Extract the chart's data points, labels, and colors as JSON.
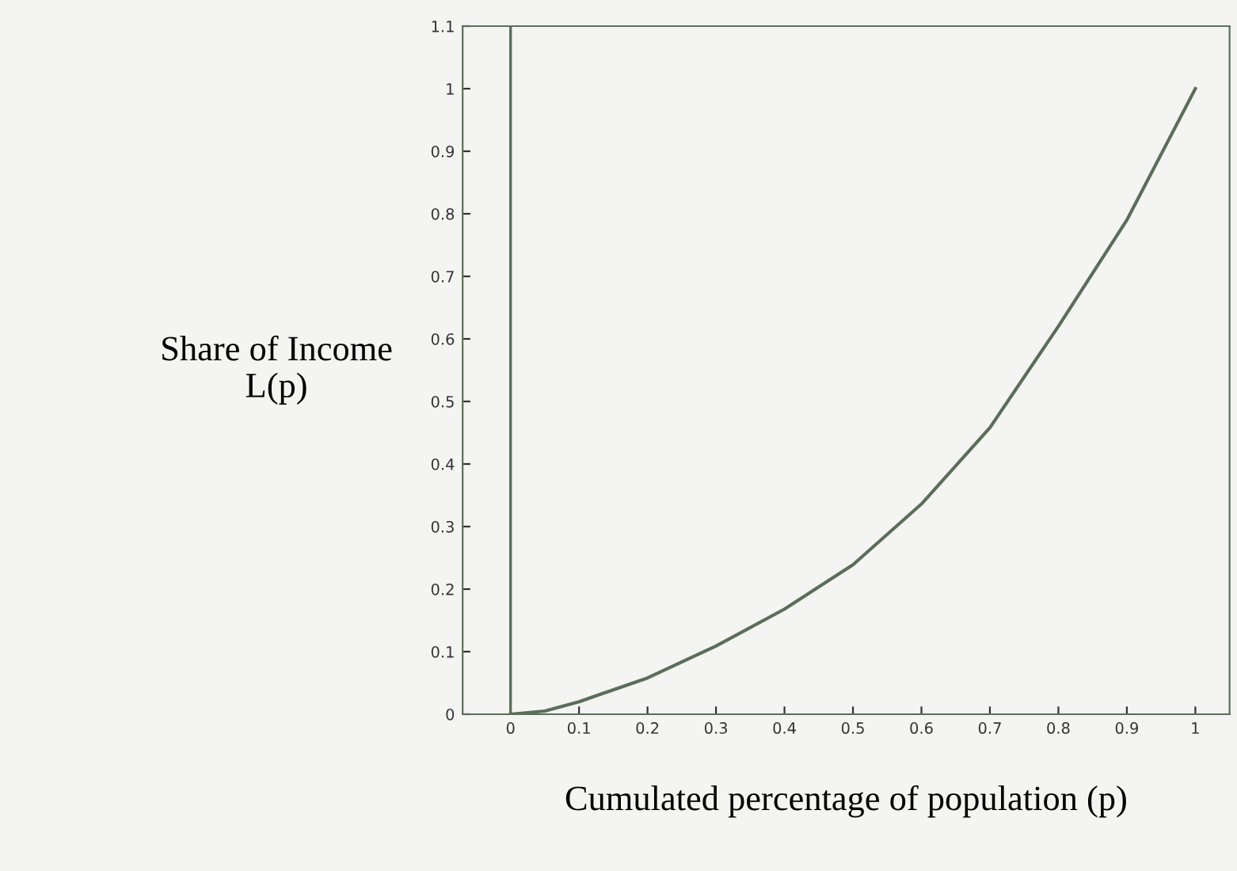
{
  "chart_data": {
    "type": "line",
    "xlabel": "Cumulated percentage of population (p)",
    "ylabel": "Share of Income\nL(p)",
    "x": [
      0,
      0.05,
      0.1,
      0.2,
      0.3,
      0.4,
      0.5,
      0.6,
      0.7,
      0.8,
      0.9,
      1
    ],
    "series": [
      {
        "color": "#5a6e5a",
        "values": [
          0,
          0.005,
          0.02,
          0.058,
          0.109,
          0.168,
          0.239,
          0.336,
          0.458,
          0.62,
          0.79,
          1
        ]
      }
    ],
    "xlim": [
      -0.07,
      1.05
    ],
    "ylim": [
      0,
      1.1
    ],
    "xticks": [
      0,
      0.1,
      0.2,
      0.3,
      0.4,
      0.5,
      0.6,
      0.7,
      0.8,
      0.9,
      1
    ],
    "yticks": [
      0,
      0.1,
      0.2,
      0.3,
      0.4,
      0.5,
      0.6,
      0.7,
      0.8,
      0.9,
      1,
      1.1
    ],
    "ref_lines": [
      {
        "axis": "x",
        "value": 0,
        "color": "#5a6e5a"
      }
    ],
    "grid": false,
    "legend": false,
    "marker": "none",
    "line_style": "solid"
  }
}
